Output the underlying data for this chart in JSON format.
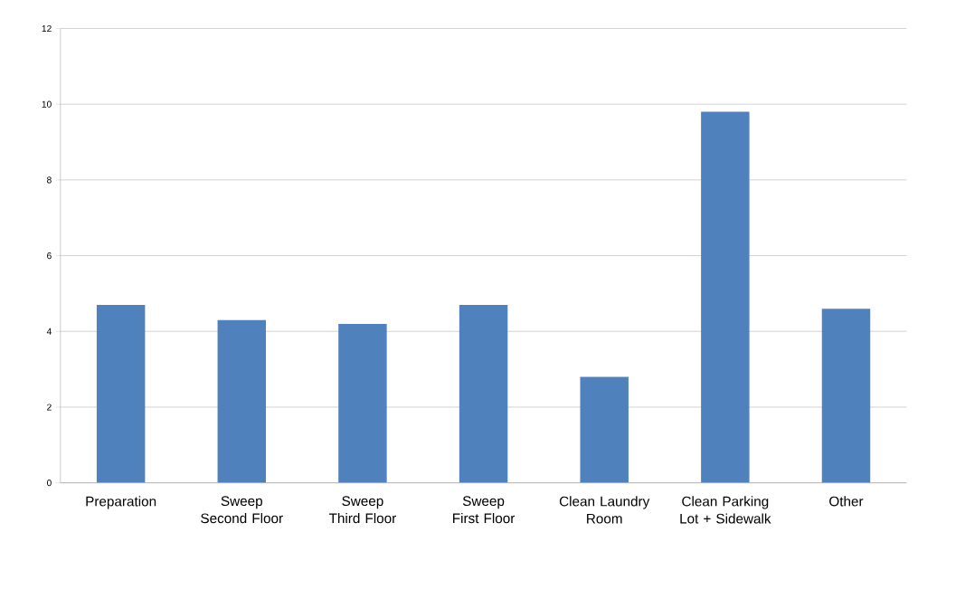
{
  "chart_data": {
    "type": "bar",
    "categories": [
      "Preparation",
      "Sweep Second Floor",
      "Sweep Third Floor",
      "Sweep First Floor",
      "Clean Laundry Room",
      "Clean Parking Lot + Sidewalk",
      "Other"
    ],
    "values": [
      4.7,
      4.3,
      4.2,
      4.7,
      2.8,
      9.8,
      4.6
    ],
    "color": "#4f81bd",
    "ylim": [
      0,
      12
    ],
    "yticks": [
      0,
      2,
      4,
      6,
      8,
      10,
      12
    ],
    "grid": "y"
  }
}
